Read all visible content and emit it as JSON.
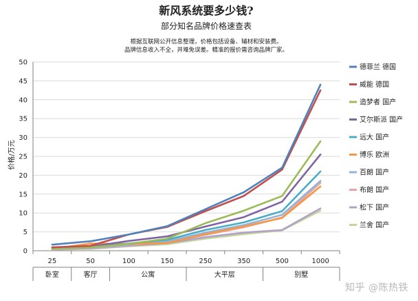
{
  "chart_data": {
    "type": "line",
    "title": "新风系统要多少钱?",
    "subtitle": "部分知名品牌价格速查表",
    "notes": [
      "根据互联网公开信息整理，价格包括设备、辅材和安装费。",
      "品牌信息收入不全，并难免误差。精准的报价需咨询品牌厂家。"
    ],
    "ylabel": "价格/万元",
    "xlabel": "",
    "ylim": [
      0,
      50
    ],
    "yticks": [
      0,
      5,
      10,
      15,
      20,
      25,
      30,
      35,
      40,
      45,
      50
    ],
    "grid": true,
    "legend_position": "right",
    "x": [
      "25",
      "50",
      "100",
      "150",
      "250",
      "350",
      "500",
      "1000"
    ],
    "x_groups": [
      {
        "label": "卧室",
        "span": [
          "25",
          "25"
        ]
      },
      {
        "label": "客厅",
        "span": [
          "50",
          "50"
        ]
      },
      {
        "label": "公寓",
        "span": [
          "100",
          "150"
        ]
      },
      {
        "label": "大平层",
        "span": [
          "250",
          "350"
        ]
      },
      {
        "label": "别墅",
        "span": [
          "500",
          "1000"
        ]
      }
    ],
    "series": [
      {
        "name": "德菲兰 德国",
        "color": "#4f81bd",
        "values": [
          1.6,
          2.5,
          4.3,
          6.5,
          11.0,
          15.5,
          22.0,
          44.0
        ]
      },
      {
        "name": "威能 德国",
        "color": "#c0504d",
        "values": [
          0.9,
          1.3,
          4.3,
          6.3,
          10.5,
          14.5,
          21.5,
          42.5
        ]
      },
      {
        "name": "造梦者 国产",
        "color": "#9bbb59",
        "values": [
          0.6,
          0.9,
          1.8,
          3.2,
          7.3,
          10.6,
          14.5,
          29.0
        ]
      },
      {
        "name": "艾尔斯派 国产",
        "color": "#8064a2",
        "values": [
          0.7,
          1.1,
          2.6,
          3.8,
          6.4,
          8.9,
          13.0,
          25.5
        ]
      },
      {
        "name": "远大 国产",
        "color": "#4bacc6",
        "values": [
          0.6,
          0.9,
          1.9,
          2.9,
          5.5,
          7.5,
          10.5,
          21.0
        ]
      },
      {
        "name": "博乐 欧洲",
        "color": "#f79646",
        "values": [
          0.5,
          1.9,
          1.8,
          2.0,
          4.4,
          6.4,
          8.7,
          17.0
        ]
      },
      {
        "name": "百朗 国产",
        "color": "#95b3d7",
        "values": [
          0.5,
          0.8,
          1.6,
          2.5,
          4.8,
          6.8,
          9.5,
          18.5
        ]
      },
      {
        "name": "布朗 国产",
        "color": "#e6a6a4",
        "values": [
          0.4,
          0.7,
          1.5,
          2.3,
          4.2,
          6.2,
          8.8,
          18.0
        ]
      },
      {
        "name": "松下 国产",
        "color": "#b3a2c7",
        "values": [
          0.4,
          0.6,
          1.3,
          2.0,
          3.6,
          4.8,
          5.5,
          11.2
        ]
      },
      {
        "name": "兰舍 国产",
        "color": "#c3d69b",
        "values": [
          0.3,
          0.5,
          1.2,
          1.7,
          3.2,
          4.4,
          5.4,
          10.6
        ]
      }
    ]
  },
  "watermark": "知乎 @陈热铁"
}
